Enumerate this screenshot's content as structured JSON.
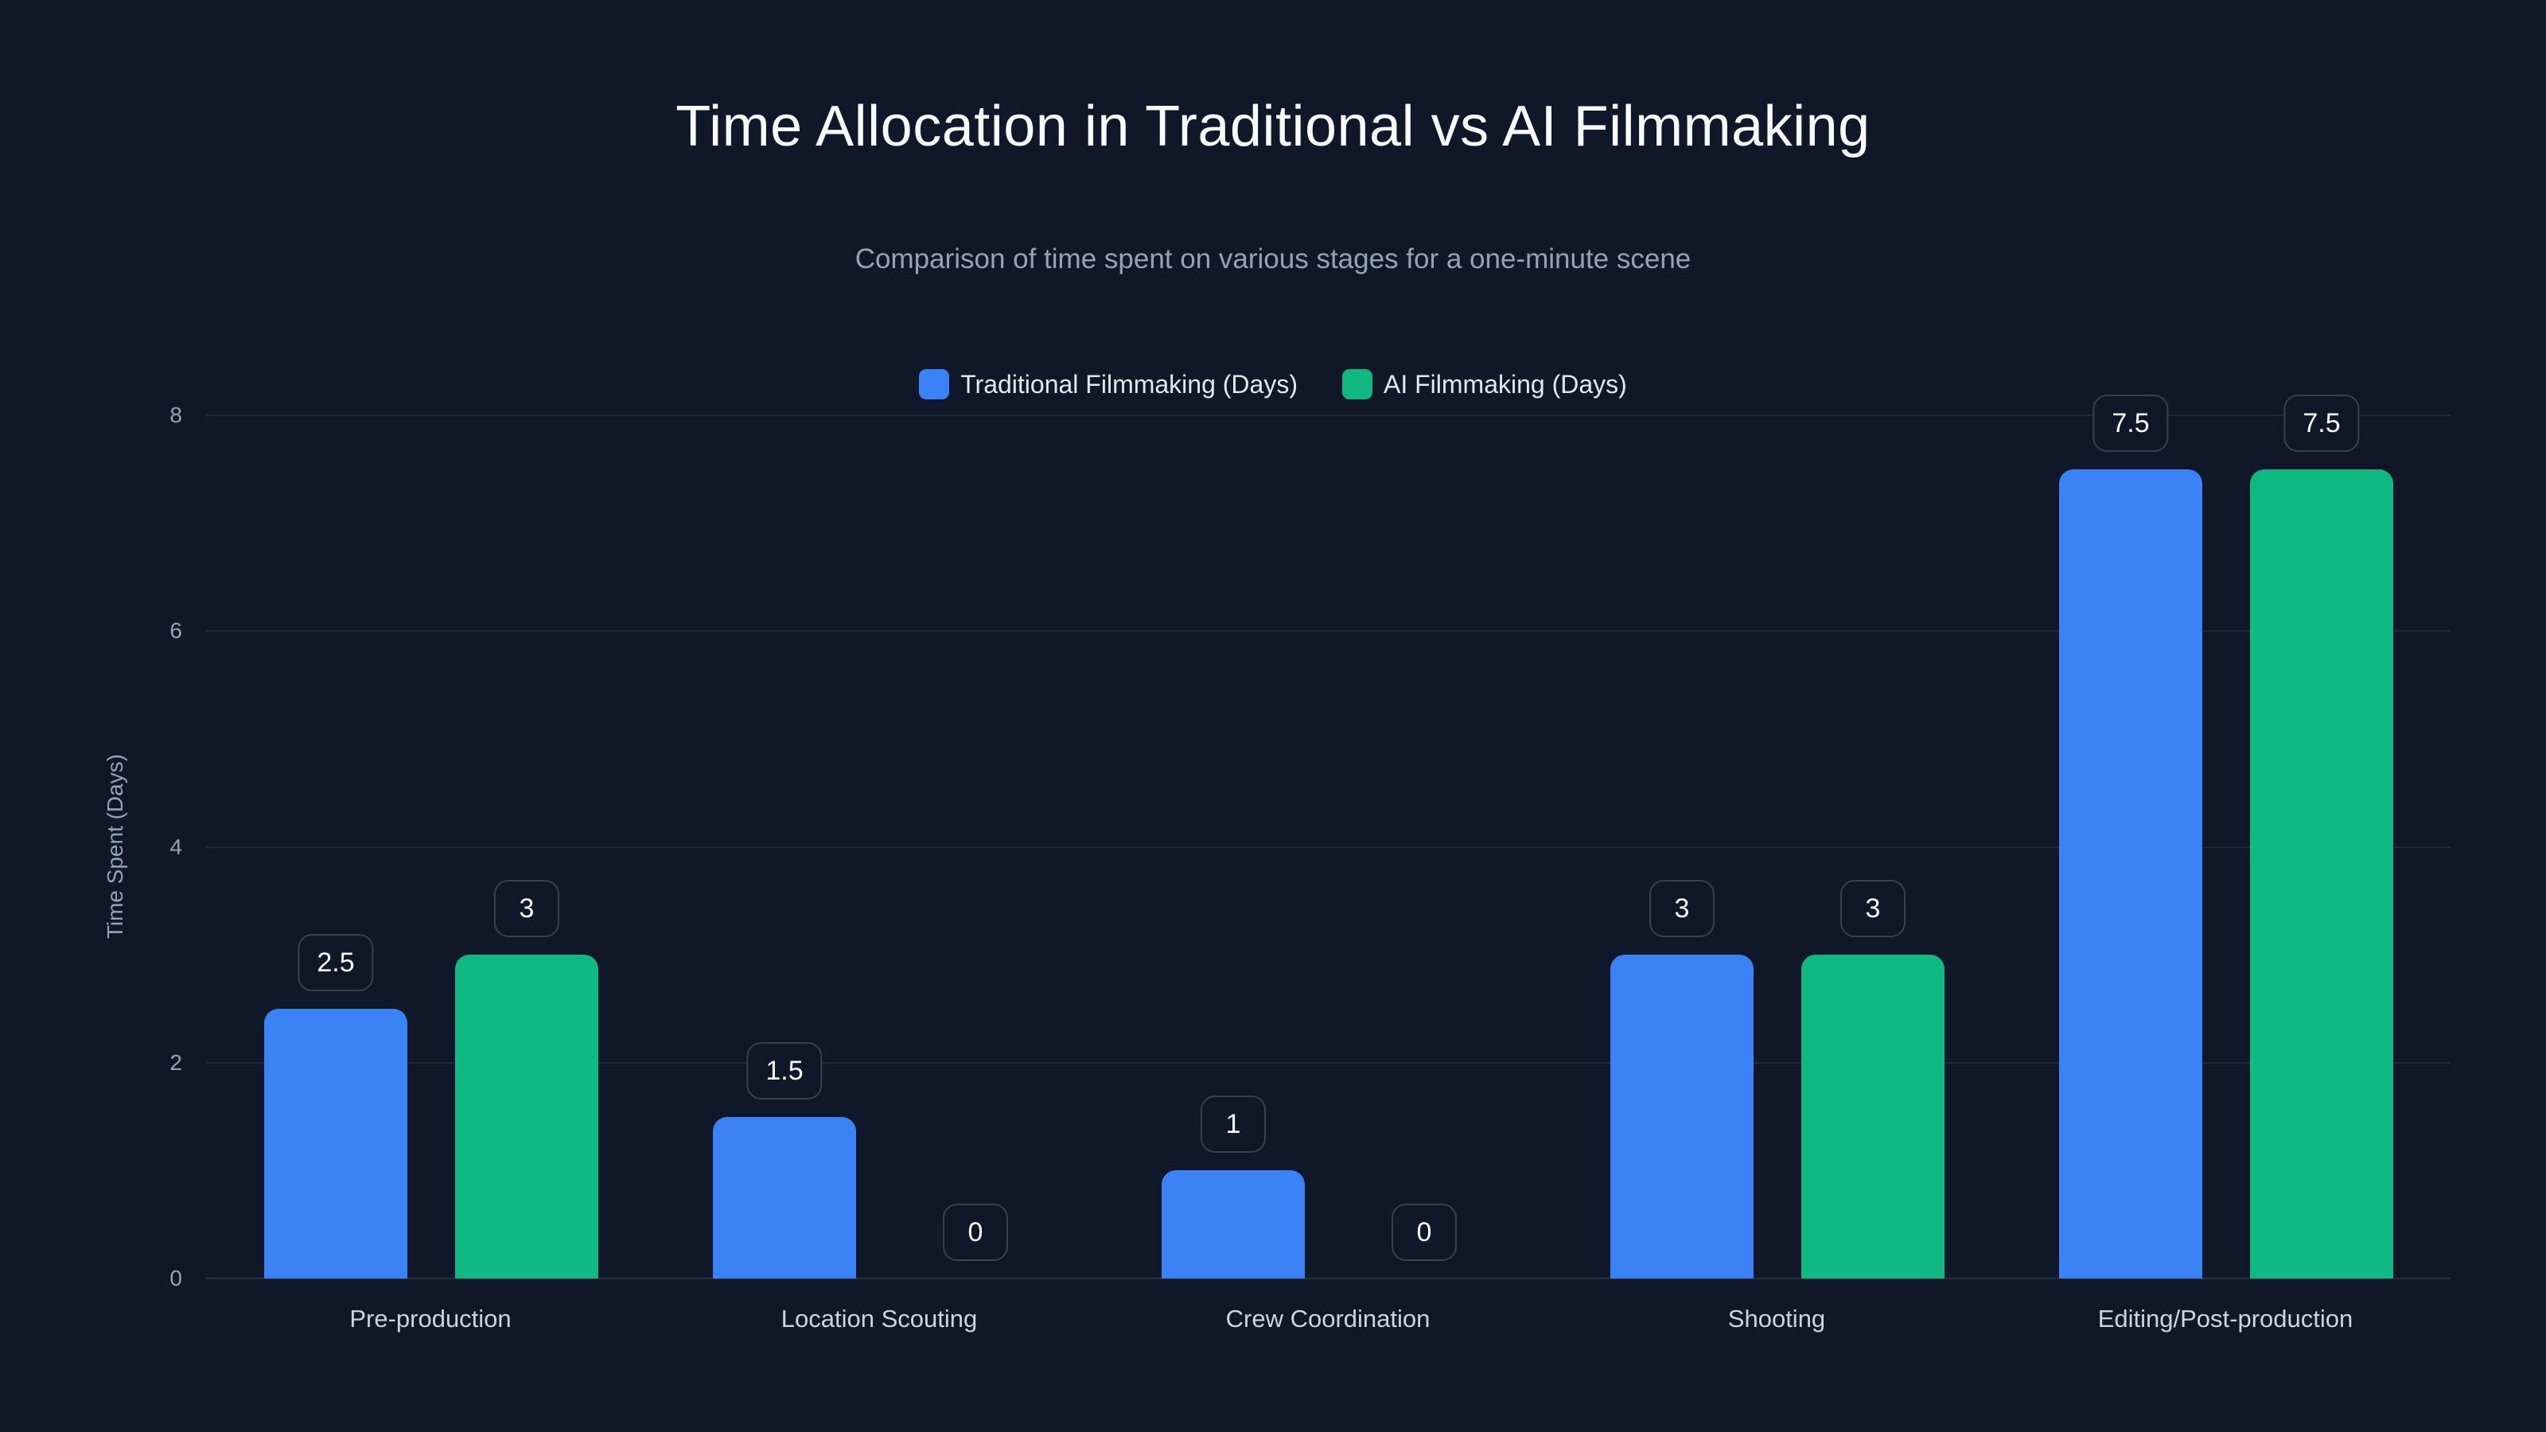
{
  "header": {
    "title": "Time Allocation in Traditional vs AI Filmmaking",
    "subtitle": "Comparison of time spent on various stages for a one-minute scene"
  },
  "legend": [
    {
      "label": "Traditional Filmmaking (Days)",
      "color": "#3b82f6"
    },
    {
      "label": "AI Filmmaking (Days)",
      "color": "#10b981"
    }
  ],
  "axes": {
    "ylabel": "Time Spent (Days)",
    "yticks": [
      "0",
      "2",
      "4",
      "6",
      "8"
    ]
  },
  "chart_data": {
    "type": "bar",
    "title": "Time Allocation in Traditional vs AI Filmmaking",
    "subtitle": "Comparison of time spent on various stages for a one-minute scene",
    "xlabel": "",
    "ylabel": "Time Spent (Days)",
    "ylim": [
      0,
      8
    ],
    "yticks": [
      0,
      2,
      4,
      6,
      8
    ],
    "grid": true,
    "legend_position": "top",
    "categories": [
      "Pre-production",
      "Location Scouting",
      "Crew Coordination",
      "Shooting",
      "Editing/Post-production"
    ],
    "series": [
      {
        "name": "Traditional Filmmaking (Days)",
        "color": "#3b82f6",
        "values": [
          2.5,
          1.5,
          1,
          3,
          7.5
        ]
      },
      {
        "name": "AI Filmmaking (Days)",
        "color": "#10b981",
        "values": [
          3,
          0,
          0,
          3,
          7.5
        ]
      }
    ],
    "data_labels": [
      [
        "2.5",
        "1.5",
        "1",
        "3",
        "7.5"
      ],
      [
        "3",
        "0",
        "0",
        "3",
        "7.5"
      ]
    ]
  }
}
